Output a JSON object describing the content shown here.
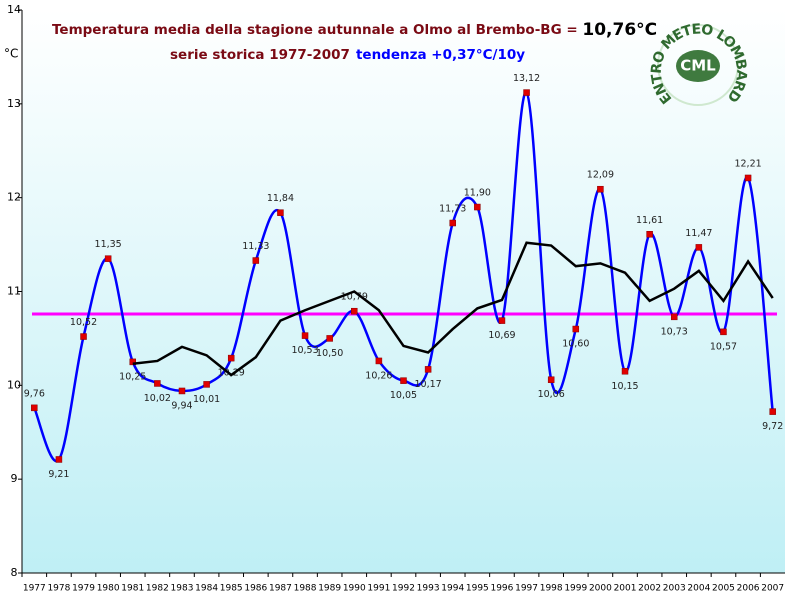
{
  "chart_data": {
    "type": "line",
    "title": "Temperatura media della stagione autunnale a Olmo al Brembo-BG = ",
    "mean": {
      "value": 10.76,
      "label": "10,76°C",
      "color": "#ff00ff"
    },
    "subtitle": "serie storica 1977-2007",
    "trend": "tendenza +0,37°C/10y",
    "y_label": "°C",
    "logo": {
      "ring": "CENTRO METEO LOMBARDO",
      "center": "CML"
    },
    "categories": [
      "1977",
      "1978",
      "1979",
      "1980",
      "1981",
      "1982",
      "1983",
      "1984",
      "1985",
      "1986",
      "1987",
      "1988",
      "1989",
      "1990",
      "1991",
      "1992",
      "1993",
      "1994",
      "1995",
      "1996",
      "1997",
      "1998",
      "1999",
      "2000",
      "2001",
      "2002",
      "2003",
      "2004",
      "2005",
      "2006",
      "2007"
    ],
    "series": [
      {
        "color": "#0000ff",
        "marker_color": "#e00000",
        "values": [
          9.76,
          9.21,
          10.52,
          11.35,
          10.25,
          10.02,
          9.94,
          10.01,
          10.29,
          11.33,
          11.84,
          10.53,
          10.5,
          10.79,
          10.26,
          10.05,
          10.17,
          11.73,
          11.9,
          10.69,
          13.12,
          10.06,
          10.6,
          12.09,
          10.15,
          11.61,
          10.73,
          11.47,
          10.57,
          12.21,
          9.72
        ],
        "value_labels": [
          "9,76",
          "9,21",
          "10,52",
          "11,35",
          "10,25",
          "10,02",
          "9,94",
          "10,01",
          "10,29",
          "11,33",
          "11,84",
          "10,53",
          "10,50",
          "10,79",
          "10,26",
          "10,05",
          "10,17",
          "11,73",
          "11,90",
          "10,69",
          "13,12",
          "10,06",
          "10,60",
          "12,09",
          "10,15",
          "11,61",
          "10,73",
          "11,47",
          "10,57",
          "12,21",
          "9,72"
        ]
      },
      {
        "color": "#000000",
        "values": [
          null,
          null,
          null,
          null,
          10.23,
          10.26,
          10.41,
          10.32,
          10.11,
          10.3,
          10.69,
          10.8,
          10.9,
          11.0,
          10.8,
          10.42,
          10.35,
          10.6,
          10.82,
          10.91,
          11.52,
          11.49,
          11.27,
          11.3,
          11.2,
          10.9,
          11.03,
          11.22,
          10.9,
          11.32,
          10.93
        ]
      }
    ],
    "ylim": [
      8,
      14
    ],
    "yticks": [
      8,
      9,
      10,
      11,
      12,
      13,
      14
    ]
  }
}
